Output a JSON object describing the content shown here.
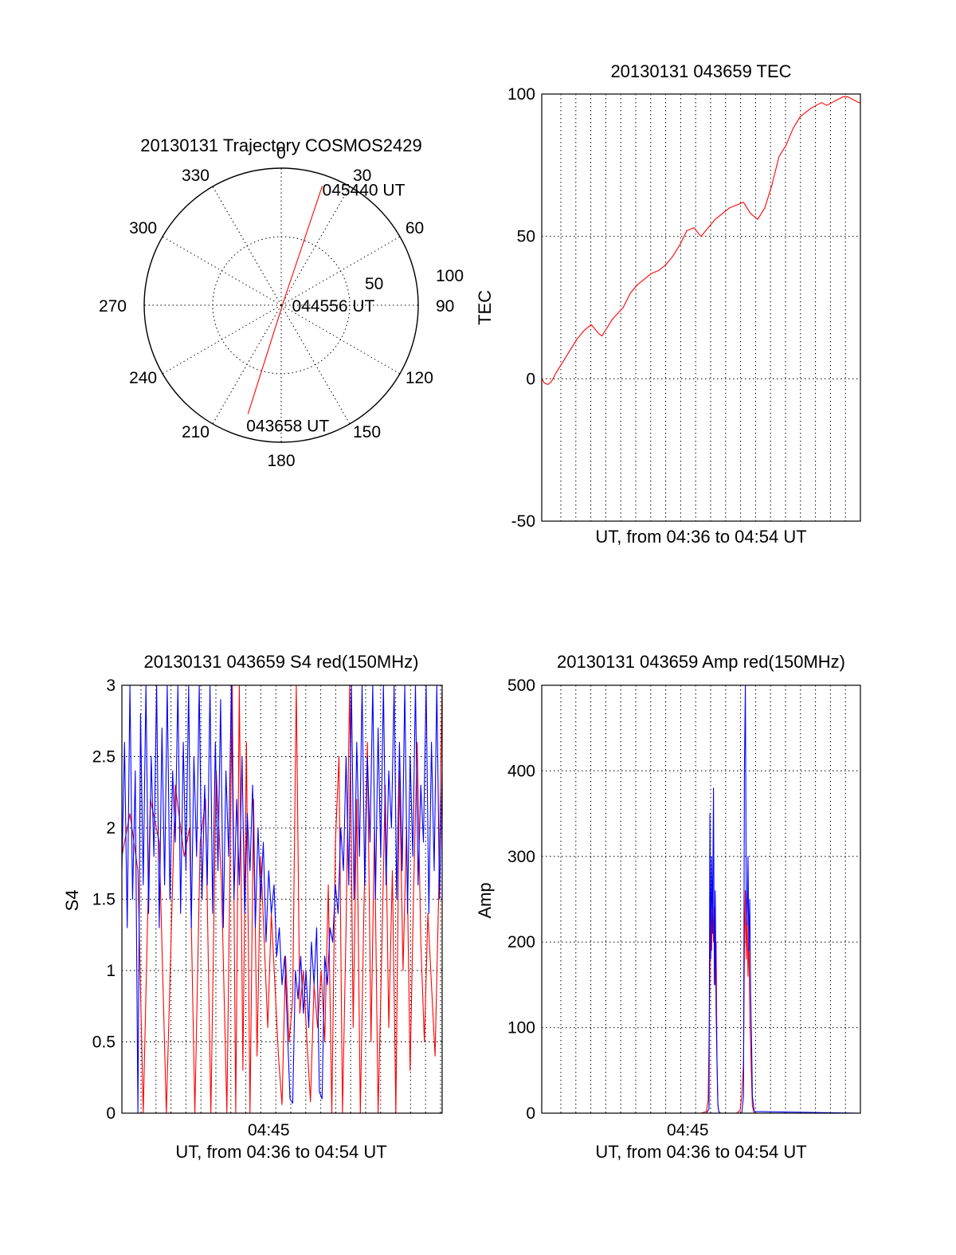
{
  "colors": {
    "red": "#ff0000",
    "blue": "#0000ff",
    "axis": "#000000",
    "background": "#ffffff"
  },
  "chart_data": [
    {
      "id": "trajectory",
      "type": "polar",
      "title": "20130131 Trajectory COSMOS2429",
      "angle_labels": [
        "0",
        "30",
        "60",
        "90",
        "120",
        "150",
        "180",
        "210",
        "240",
        "270",
        "300",
        "330"
      ],
      "ring_labels": [
        "50",
        "100"
      ],
      "rlim": [
        0,
        100
      ],
      "grid": true,
      "track": {
        "name": "COSMOS2429",
        "color": "#ff0000",
        "points": [
          {
            "az": 19,
            "zenith": 92,
            "label": "045440 UT"
          },
          {
            "az": 30,
            "zenith": 4,
            "label": "044556 UT"
          },
          {
            "az": 197,
            "zenith": 83,
            "label": "043658 UT"
          }
        ]
      }
    },
    {
      "id": "tec",
      "type": "line",
      "title": "20130131 043659 TEC",
      "xlabel": "UT, from 04:36 to 04:54 UT",
      "ylabel": "TEC",
      "xlim": [
        "04:36",
        "04:54"
      ],
      "ylim": [
        -50,
        100
      ],
      "yticks": [
        "100",
        "50",
        "0",
        "-50"
      ],
      "xticks": [],
      "grid": true,
      "series": [
        {
          "color": "#ff0000",
          "x_minutes": [
            0.0,
            0.15,
            0.35,
            0.55,
            0.8,
            1.2,
            1.6,
            2.0,
            2.4,
            2.8,
            3.2,
            3.4,
            3.7,
            4.0,
            4.3,
            4.6,
            5.0,
            5.4,
            5.8,
            6.2,
            6.6,
            7.0,
            7.4,
            7.8,
            8.2,
            8.6,
            9.0,
            9.4,
            9.8,
            10.2,
            10.6,
            11.0,
            11.4,
            11.8,
            12.2,
            12.6,
            13.0,
            13.4,
            13.8,
            14.2,
            14.6,
            15.0,
            15.2,
            15.5,
            15.8,
            16.1,
            16.4,
            16.7,
            17.0,
            17.3,
            17.6,
            17.9,
            18.0
          ],
          "y": [
            0,
            -1.5,
            -2,
            -1,
            2,
            6,
            10,
            14,
            17,
            19,
            16,
            15,
            18,
            21,
            23,
            25,
            30,
            33,
            35,
            37,
            38,
            40,
            43,
            47,
            52,
            53,
            50,
            53,
            56,
            58,
            60,
            61,
            62,
            58,
            56,
            60,
            68,
            78,
            82,
            88,
            92,
            94,
            95,
            96,
            97,
            96,
            97,
            98,
            99,
            99,
            98,
            97,
            97
          ]
        }
      ]
    },
    {
      "id": "s4",
      "type": "line",
      "title": "20130131 043659 S4 red(150MHz)",
      "xlabel": "UT, from 04:36 to 04:54 UT",
      "ylabel": "S4",
      "xlim": [
        "04:36",
        "04:54"
      ],
      "ylim": [
        0,
        3
      ],
      "yticks": [
        "3",
        "2.5",
        "2",
        "1.5",
        "1",
        "0.5",
        "0"
      ],
      "xticks": [
        {
          "label": "04:45",
          "minute": 8.25
        }
      ],
      "grid": true,
      "series": [
        {
          "color": "#ff0000",
          "x_minutes": [
            0.0,
            0.45,
            0.9,
            1.2,
            1.6,
            2.1,
            2.5,
            3.0,
            3.5,
            3.8,
            4.1,
            4.4,
            4.7,
            5.0,
            5.3,
            5.6,
            5.9,
            6.2,
            6.4,
            6.6,
            6.8,
            7.0,
            7.2,
            7.4,
            7.6,
            7.8,
            8.0,
            8.2,
            8.4,
            8.6,
            8.8,
            9.0,
            9.2,
            9.4,
            9.6,
            9.8,
            10.0,
            10.2,
            10.4,
            10.6,
            10.8,
            11.0,
            11.2,
            11.4,
            11.6,
            11.8,
            12.0,
            12.2,
            12.4,
            12.6,
            12.8,
            13.0,
            13.2,
            13.4,
            13.6,
            13.8,
            14.0,
            14.2,
            14.4,
            14.6,
            14.8,
            15.0,
            15.2,
            15.4,
            15.6,
            15.8,
            16.0,
            16.2,
            16.4,
            16.6,
            16.8,
            17.0,
            17.2,
            17.4,
            17.6,
            17.8,
            18.0
          ],
          "y": [
            1.8,
            2.1,
            1.7,
            0.0,
            2.2,
            1.9,
            0.0,
            2.3,
            1.8,
            2.0,
            0.0,
            1.9,
            2.2,
            0.0,
            2.4,
            1.6,
            0.0,
            3.0,
            0.0,
            3.0,
            0.3,
            2.6,
            0.0,
            2.2,
            0.4,
            1.8,
            1.2,
            0.6,
            1.4,
            0.9,
            0.4,
            0.06,
            1.1,
            0.5,
            0.8,
            3.0,
            0.7,
            1.0,
            0.5,
            0.08,
            0.9,
            0.6,
            1.0,
            0.5,
            1.6,
            0.0,
            1.9,
            2.5,
            0.0,
            1.3,
            3.0,
            0.6,
            2.2,
            0.0,
            1.4,
            2.6,
            0.5,
            2.0,
            0.0,
            1.1,
            2.3,
            0.6,
            1.7,
            0.0,
            2.4,
            1.0,
            2.0,
            0.3,
            1.6,
            2.6,
            1.2,
            0.5,
            1.4,
            0.9,
            0.4,
            1.5,
            3.0
          ]
        },
        {
          "color": "#0000ff",
          "x_minutes": [
            0.0,
            0.15,
            0.3,
            0.45,
            0.6,
            0.75,
            0.9,
            1.05,
            1.2,
            1.35,
            1.5,
            1.65,
            1.8,
            1.95,
            2.1,
            2.25,
            2.4,
            2.55,
            2.7,
            2.85,
            3.0,
            3.15,
            3.3,
            3.45,
            3.6,
            3.75,
            3.9,
            4.05,
            4.2,
            4.35,
            4.5,
            4.65,
            4.8,
            4.95,
            5.1,
            5.25,
            5.4,
            5.55,
            5.7,
            5.85,
            6.0,
            6.15,
            6.3,
            6.45,
            6.6,
            6.75,
            6.9,
            7.05,
            7.2,
            7.35,
            7.5,
            7.65,
            7.8,
            7.95,
            8.1,
            8.25,
            8.4,
            8.55,
            8.7,
            8.85,
            9.0,
            9.15,
            9.3,
            9.45,
            9.6,
            9.75,
            9.9,
            10.05,
            10.2,
            10.35,
            10.5,
            10.65,
            10.8,
            10.95,
            11.1,
            11.25,
            11.4,
            11.55,
            11.7,
            11.85,
            12.0,
            12.15,
            12.3,
            12.45,
            12.6,
            12.75,
            12.9,
            13.05,
            13.2,
            13.35,
            13.5,
            13.65,
            13.8,
            13.95,
            14.1,
            14.25,
            14.4,
            14.55,
            14.7,
            14.85,
            15.0,
            15.15,
            15.3,
            15.45,
            15.6,
            15.75,
            15.9,
            16.05,
            16.2,
            16.35,
            16.5,
            16.65,
            16.8,
            16.95,
            17.1,
            17.25,
            17.4,
            17.55,
            17.7,
            17.85,
            18.0
          ],
          "y": [
            1.7,
            2.6,
            1.3,
            3.0,
            1.5,
            2.4,
            0.0,
            2.8,
            1.6,
            3.0,
            1.4,
            2.5,
            1.8,
            3.0,
            1.3,
            2.7,
            1.6,
            3.0,
            1.5,
            2.4,
            1.9,
            3.0,
            1.4,
            2.6,
            1.7,
            3.0,
            1.3,
            2.5,
            1.8,
            3.0,
            1.5,
            2.3,
            1.6,
            3.0,
            1.4,
            2.6,
            1.7,
            2.9,
            1.3,
            2.4,
            1.8,
            3.0,
            1.5,
            2.2,
            1.6,
            2.5,
            1.4,
            2.1,
            1.7,
            2.3,
            1.3,
            2.0,
            1.5,
            1.9,
            1.2,
            1.7,
            1.4,
            1.6,
            1.1,
            1.3,
            0.9,
            1.1,
            0.6,
            0.1,
            0.07,
            1.0,
            0.8,
            1.1,
            0.7,
            1.0,
            0.6,
            1.2,
            0.9,
            1.3,
            0.15,
            0.1,
            1.1,
            0.9,
            1.3,
            1.2,
            1.6,
            1.4,
            2.0,
            1.7,
            2.5,
            1.6,
            3.0,
            1.5,
            2.6,
            1.8,
            3.0,
            1.6,
            2.5,
            1.9,
            3.0,
            1.5,
            2.7,
            1.8,
            3.0,
            1.6,
            2.4,
            2.0,
            3.0,
            1.5,
            2.6,
            1.7,
            3.0,
            1.4,
            2.5,
            1.8,
            3.0,
            1.6,
            2.3,
            1.9,
            3.0,
            1.4,
            2.6,
            1.7,
            3.0,
            1.5,
            2.4
          ]
        }
      ]
    },
    {
      "id": "amp",
      "type": "line",
      "title": "20130131 043659 Amp red(150MHz)",
      "xlabel": "UT, from 04:36 to 04:54 UT",
      "ylabel": "Amp",
      "xlim": [
        "04:36",
        "04:54"
      ],
      "ylim": [
        0,
        500
      ],
      "yticks": [
        "500",
        "400",
        "300",
        "200",
        "100",
        "0"
      ],
      "xticks": [
        {
          "label": "04:45",
          "minute": 8.25
        }
      ],
      "grid": true,
      "series": [
        {
          "color": "#ff0000",
          "x_minutes": [
            0.0,
            9.0,
            9.3,
            9.4,
            9.5,
            9.55,
            9.6,
            9.65,
            9.7,
            9.75,
            9.8,
            9.85,
            9.9,
            9.95,
            10.0,
            10.1,
            11.0,
            11.2,
            11.3,
            11.4,
            11.45,
            11.5,
            11.55,
            11.6,
            11.65,
            11.7,
            11.75,
            11.8,
            11.85,
            11.9,
            12.0,
            18.0
          ],
          "y": [
            0,
            0,
            2,
            15,
            160,
            250,
            190,
            270,
            200,
            240,
            150,
            200,
            60,
            10,
            2,
            0,
            0,
            3,
            20,
            60,
            190,
            260,
            180,
            240,
            160,
            210,
            120,
            80,
            40,
            8,
            0,
            0
          ]
        },
        {
          "color": "#0000ff",
          "x_minutes": [
            0.0,
            9.3,
            9.45,
            9.5,
            9.55,
            9.6,
            9.65,
            9.7,
            9.75,
            9.8,
            9.85,
            9.9,
            9.95,
            10.0,
            10.1,
            11.3,
            11.4,
            11.45,
            11.5,
            11.55,
            11.6,
            11.65,
            11.7,
            11.75,
            11.8,
            11.85,
            11.9,
            12.0,
            18.0
          ],
          "y": [
            0,
            0,
            5,
            350,
            180,
            300,
            210,
            380,
            150,
            260,
            120,
            60,
            10,
            2,
            0,
            0,
            20,
            400,
            500,
            260,
            220,
            300,
            190,
            250,
            140,
            90,
            20,
            2,
            0
          ]
        }
      ]
    }
  ]
}
